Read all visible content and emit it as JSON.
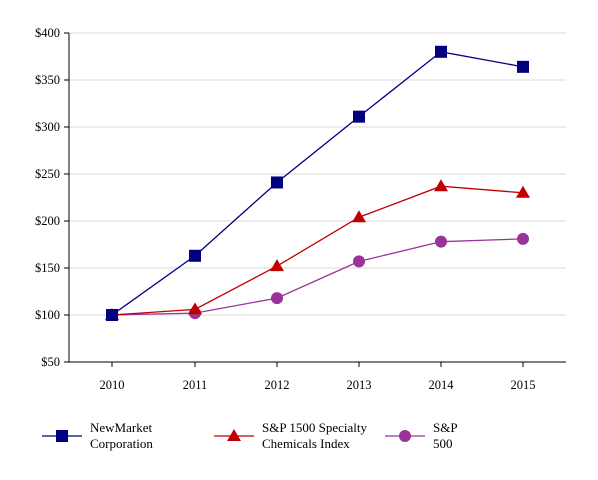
{
  "chart_data": {
    "type": "line",
    "title": "",
    "xlabel": "",
    "ylabel": "",
    "categories": [
      "2010",
      "2011",
      "2012",
      "2013",
      "2014",
      "2015"
    ],
    "y_ticks": [
      "$50",
      "$100",
      "$150",
      "$200",
      "$250",
      "$300",
      "$350",
      "$400"
    ],
    "ylim": [
      50,
      400
    ],
    "grid": "horizontal",
    "legend_position": "bottom",
    "series": [
      {
        "name_lines": [
          "NewMarket",
          "Corporation"
        ],
        "values": [
          100,
          163,
          241,
          311,
          380,
          364
        ],
        "color": "#000080",
        "marker": "square"
      },
      {
        "name_lines": [
          "S&P 1500 Specialty",
          "Chemicals Index"
        ],
        "values": [
          100,
          106,
          152,
          204,
          237,
          230
        ],
        "color": "#c00000",
        "marker": "triangle"
      },
      {
        "name_lines": [
          "S&P",
          "500"
        ],
        "values": [
          100,
          102,
          118,
          157,
          178,
          181
        ],
        "color": "#993399",
        "marker": "circle"
      }
    ]
  }
}
